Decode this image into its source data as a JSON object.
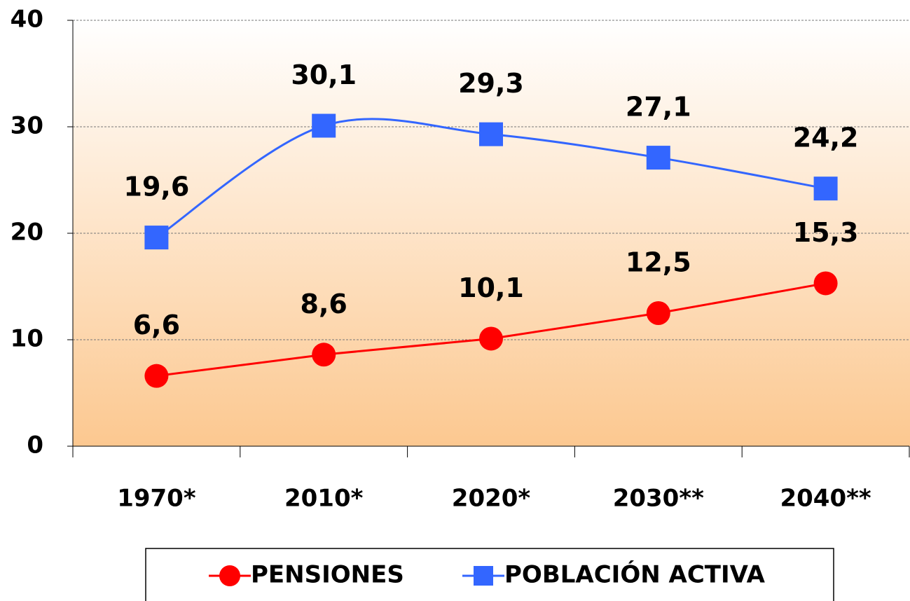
{
  "chart_data": {
    "type": "line",
    "categories": [
      "1970*",
      "2010*",
      "2020*",
      "2030**",
      "2040**"
    ],
    "series": [
      {
        "name": "PENSIONES",
        "color": "#ff0000",
        "marker": "circle",
        "smooth": false,
        "values": [
          6.6,
          8.6,
          10.1,
          12.5,
          15.3
        ],
        "value_labels": [
          "6,6",
          "8,6",
          "10,1",
          "12,5",
          "15,3"
        ]
      },
      {
        "name": "POBLACIÓN ACTIVA",
        "color": "#3366ff",
        "marker": "square",
        "smooth": true,
        "values": [
          19.6,
          30.1,
          29.3,
          27.1,
          24.2
        ],
        "value_labels": [
          "19,6",
          "30,1",
          "29,3",
          "27,1",
          "24,2"
        ]
      }
    ],
    "ylim": [
      0,
      40
    ],
    "yticks": [
      0,
      10,
      20,
      30,
      40
    ],
    "grid": true,
    "legend": "bottom"
  }
}
